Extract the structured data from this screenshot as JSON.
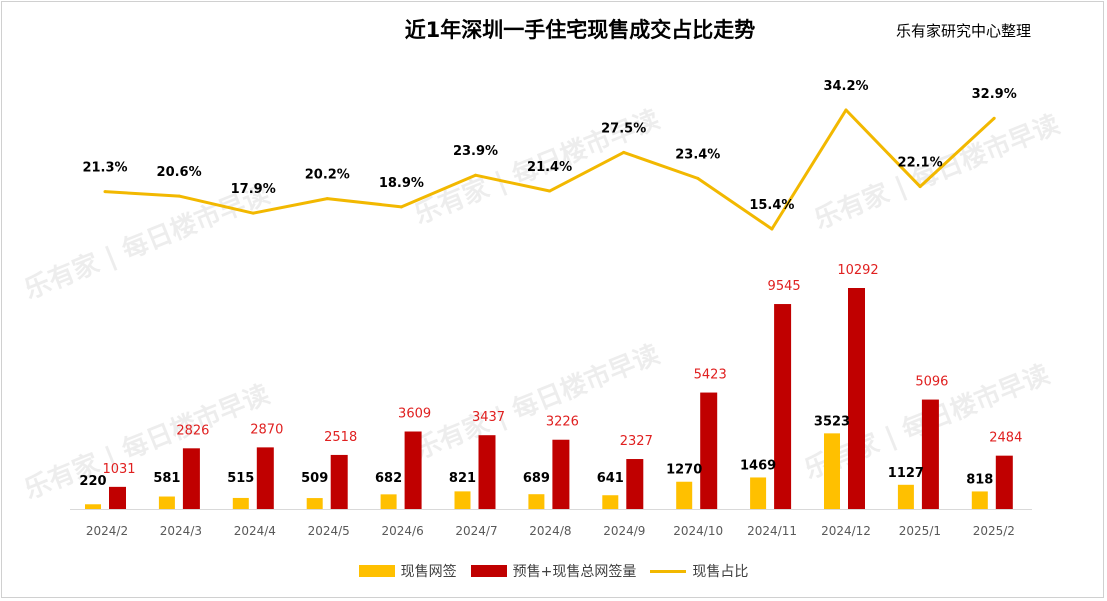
{
  "chart_data": {
    "type": "bar+line",
    "title": "近1年深圳一手住宅现售成交占比走势",
    "source": "乐有家研究中心整理",
    "watermark": "乐有家 | 每日楼市早读",
    "categories": [
      "2024/2",
      "2024/3",
      "2024/4",
      "2024/5",
      "2024/6",
      "2024/7",
      "2024/8",
      "2024/9",
      "2024/10",
      "2024/11",
      "2024/12",
      "2025/1",
      "2025/2"
    ],
    "series": [
      {
        "name": "现售网签",
        "type": "bar",
        "color": "#FFC000",
        "values": [
          220,
          581,
          515,
          509,
          682,
          821,
          689,
          641,
          1270,
          1469,
          3523,
          1127,
          818
        ]
      },
      {
        "name": "预售+现售总网签量",
        "type": "bar",
        "color": "#C00000",
        "values": [
          1031,
          2826,
          2870,
          2518,
          3609,
          3437,
          3226,
          2327,
          5423,
          9545,
          10292,
          5096,
          2484
        ]
      },
      {
        "name": "现售占比",
        "type": "line",
        "color": "#F2B800",
        "values": [
          21.3,
          20.6,
          17.9,
          20.2,
          18.9,
          23.9,
          21.4,
          27.5,
          23.4,
          15.4,
          34.2,
          22.1,
          32.9
        ],
        "labels": [
          "21.3%",
          "20.6%",
          "17.9%",
          "20.2%",
          "18.9%",
          "23.9%",
          "21.4%",
          "27.5%",
          "23.4%",
          "15.4%",
          "34.2%",
          "22.1%",
          "32.9%"
        ]
      }
    ],
    "legend": "bottom",
    "grid": false
  }
}
